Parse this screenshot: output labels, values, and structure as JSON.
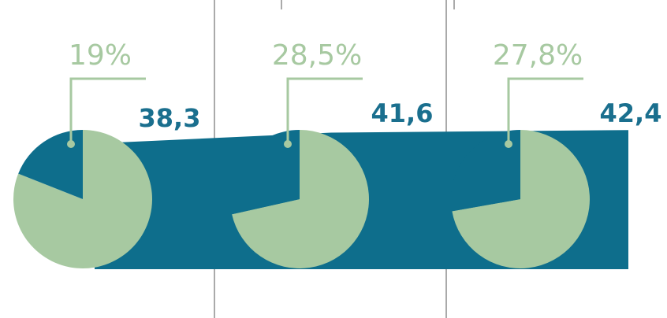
{
  "chart_data": {
    "type": "pie",
    "values": [
      19,
      28.5,
      27.8
    ],
    "value_labels": [
      "19%",
      "28,5%",
      "27,8%"
    ],
    "colors": [
      "#0e6e8c",
      "#a7c9a1"
    ],
    "band": {
      "values": [
        38.3,
        41.6,
        42.4
      ],
      "value_labels": [
        "38,3",
        "41,6",
        "42,4"
      ],
      "color": "#0e6e8c"
    }
  }
}
